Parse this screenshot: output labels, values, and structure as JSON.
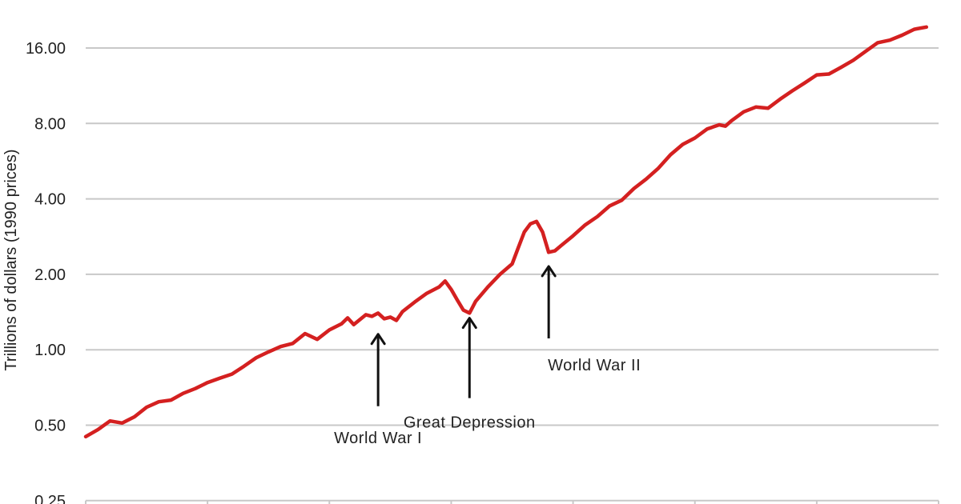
{
  "chart_data": {
    "type": "line",
    "scale": "log2",
    "ylabel": "Trillions of dollars (1990 prices)",
    "ylim": [
      0.25,
      19.5
    ],
    "xlim": [
      1870,
      2010
    ],
    "y_ticks": [
      "0.25",
      "0.50",
      "1.00",
      "2.00",
      "4.00",
      "8.00",
      "16.00"
    ],
    "y_tick_values": [
      0.25,
      0.5,
      1,
      2,
      4,
      8,
      16
    ],
    "grid": true,
    "series": [
      {
        "color": "#d42020",
        "x": [
          1870,
          1872,
          1874,
          1876,
          1878,
          1880,
          1882,
          1884,
          1886,
          1888,
          1890,
          1892,
          1894,
          1896,
          1898,
          1900,
          1902,
          1904,
          1906,
          1908,
          1910,
          1912,
          1913,
          1914,
          1916,
          1917,
          1918,
          1919,
          1920,
          1921,
          1922,
          1924,
          1926,
          1928,
          1929,
          1930,
          1931,
          1932,
          1933,
          1934,
          1936,
          1938,
          1940,
          1941,
          1942,
          1943,
          1944,
          1945,
          1946,
          1947,
          1948,
          1950,
          1952,
          1954,
          1956,
          1958,
          1960,
          1962,
          1964,
          1966,
          1968,
          1970,
          1972,
          1974,
          1975,
          1976,
          1978,
          1980,
          1982,
          1984,
          1986,
          1988,
          1990,
          1992,
          1994,
          1996,
          1998,
          2000,
          2002,
          2004,
          2006,
          2008
        ],
        "values": [
          0.45,
          0.48,
          0.52,
          0.51,
          0.54,
          0.59,
          0.62,
          0.63,
          0.67,
          0.7,
          0.74,
          0.77,
          0.8,
          0.86,
          0.93,
          0.98,
          1.03,
          1.06,
          1.16,
          1.1,
          1.2,
          1.27,
          1.34,
          1.26,
          1.38,
          1.36,
          1.4,
          1.33,
          1.35,
          1.31,
          1.42,
          1.55,
          1.68,
          1.78,
          1.88,
          1.74,
          1.58,
          1.44,
          1.4,
          1.56,
          1.78,
          2.0,
          2.2,
          2.55,
          2.95,
          3.18,
          3.25,
          2.95,
          2.45,
          2.48,
          2.6,
          2.85,
          3.15,
          3.4,
          3.75,
          3.95,
          4.4,
          4.8,
          5.3,
          6.0,
          6.6,
          7.0,
          7.6,
          7.9,
          7.8,
          8.2,
          8.9,
          9.3,
          9.2,
          10.0,
          10.8,
          11.6,
          12.5,
          12.6,
          13.4,
          14.3,
          15.5,
          16.8,
          17.2,
          18.0,
          19.0,
          19.4
        ]
      }
    ],
    "annotations": [
      {
        "label": "World War I",
        "x": 1918,
        "y": 1.26
      },
      {
        "label": "Great Depression",
        "x": 1933,
        "y": 1.44
      },
      {
        "label": "World War II",
        "x": 1946,
        "y": 2.35
      }
    ]
  }
}
